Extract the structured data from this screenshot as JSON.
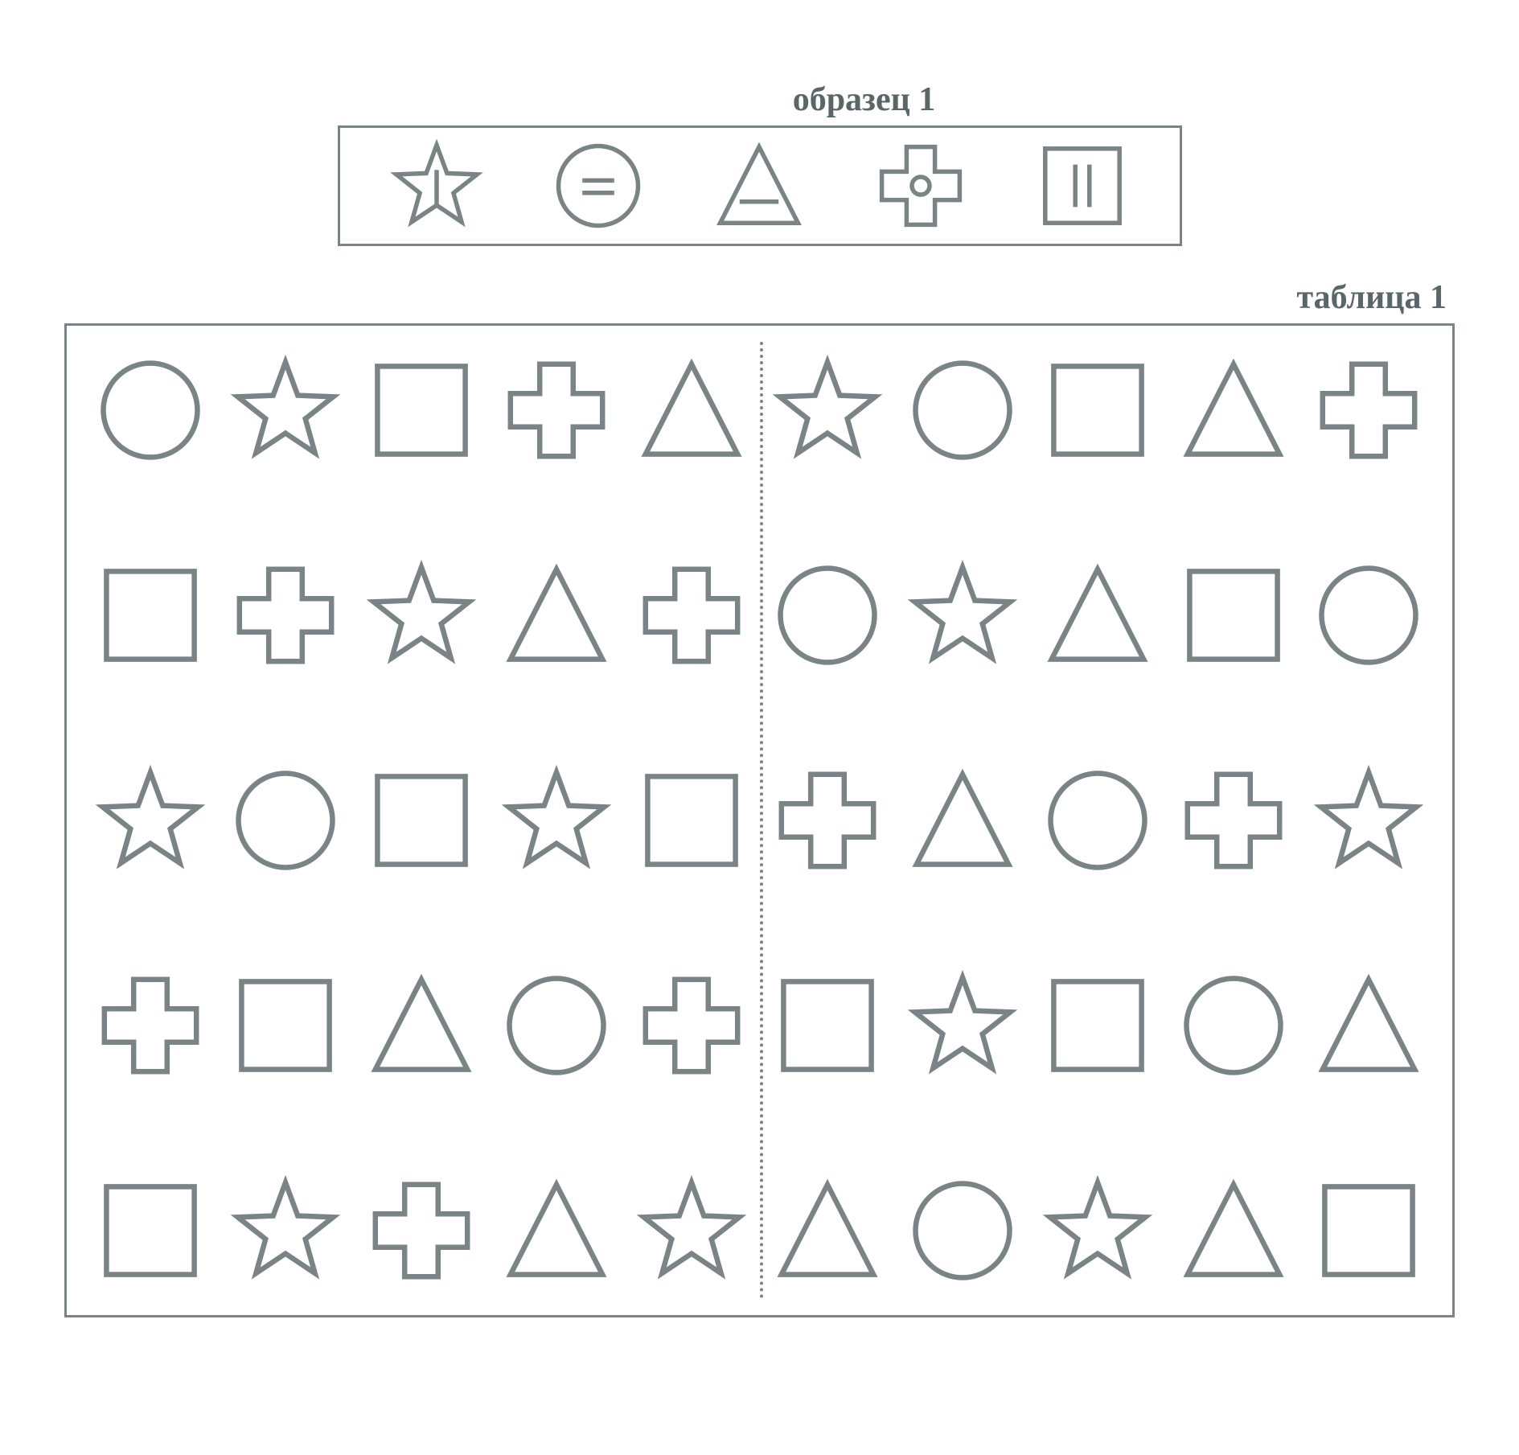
{
  "labels": {
    "legend_title": "образец 1",
    "table_title": "таблица 1"
  },
  "style": {
    "background_color": "#ffffff",
    "stroke_color": "#7a8486",
    "stroke_width": 5,
    "legend_shape_size": 110,
    "table_shape_size": 130,
    "font_family": "Times New Roman",
    "title_fontsize_pt": 32,
    "title_font_weight": "bold",
    "title_color": "#5a6668"
  },
  "legend": {
    "type": "key-row",
    "items": [
      {
        "shape": "star",
        "mark": "vline"
      },
      {
        "shape": "circle",
        "mark": "equals"
      },
      {
        "shape": "triangle",
        "mark": "hline"
      },
      {
        "shape": "plus",
        "mark": "smallcircle"
      },
      {
        "shape": "square",
        "mark": "twovlines"
      }
    ]
  },
  "table": {
    "type": "shape-grid",
    "rows": 5,
    "cols": 10,
    "split_after_col": 5,
    "grid": [
      [
        "circle",
        "star",
        "square",
        "plus",
        "triangle",
        "star",
        "circle",
        "square",
        "triangle",
        "plus"
      ],
      [
        "square",
        "plus",
        "star",
        "triangle",
        "plus",
        "circle",
        "star",
        "triangle",
        "square",
        "circle"
      ],
      [
        "star",
        "circle",
        "square",
        "star",
        "square",
        "plus",
        "triangle",
        "circle",
        "plus",
        "star"
      ],
      [
        "plus",
        "square",
        "triangle",
        "circle",
        "plus",
        "square",
        "star",
        "square",
        "circle",
        "triangle"
      ],
      [
        "square",
        "star",
        "plus",
        "triangle",
        "star",
        "triangle",
        "circle",
        "star",
        "triangle",
        "square"
      ]
    ]
  }
}
